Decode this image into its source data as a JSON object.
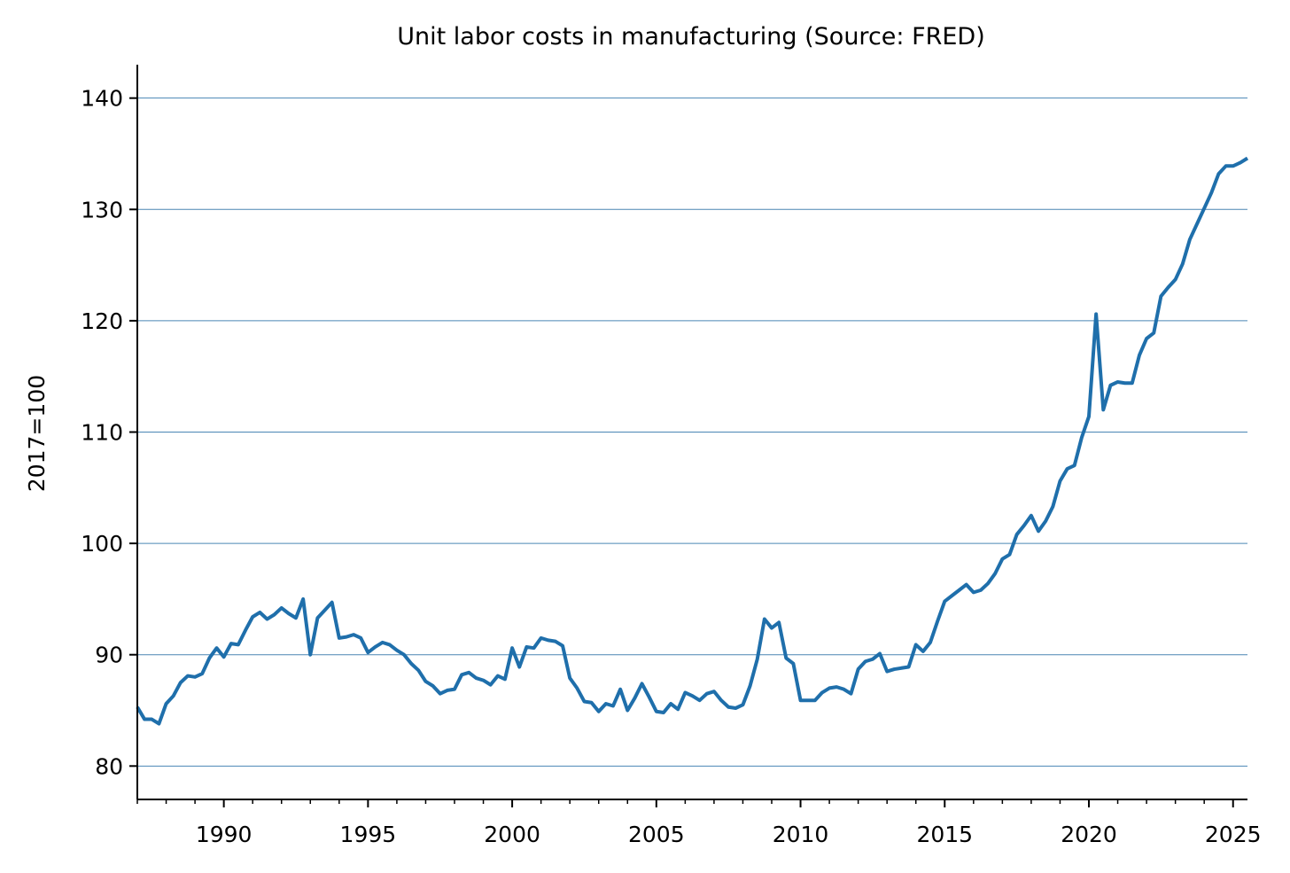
{
  "chart_data": {
    "type": "line",
    "title": "Unit labor costs in manufacturing (Source: FRED)",
    "xlabel": "",
    "ylabel": "2017=100",
    "xlim": [
      1987.0,
      2025.5
    ],
    "ylim": [
      77,
      143
    ],
    "x_ticks": [
      1990,
      1995,
      2000,
      2005,
      2010,
      2015,
      2020,
      2025
    ],
    "x_tick_labels": [
      "1990",
      "1995",
      "2000",
      "2005",
      "2010",
      "2015",
      "2020",
      "2025"
    ],
    "y_ticks": [
      80,
      90,
      100,
      110,
      120,
      130,
      140
    ],
    "y_tick_labels": [
      "80",
      "90",
      "100",
      "110",
      "120",
      "130",
      "140"
    ],
    "grid": "horizontal",
    "legend": "none",
    "colors": {
      "line": "#1f6fab",
      "grid": "#4a86b4",
      "axis": "#000000"
    },
    "series": [
      {
        "x": [
          1987.0,
          1987.25,
          1987.5,
          1987.75,
          1988.0,
          1988.25,
          1988.5,
          1988.75,
          1989.0,
          1989.25,
          1989.5,
          1989.75,
          1990.0,
          1990.25,
          1990.5,
          1990.75,
          1991.0,
          1991.25,
          1991.5,
          1991.75,
          1992.0,
          1992.25,
          1992.5,
          1992.75,
          1993.0,
          1993.25,
          1993.5,
          1993.75,
          1994.0,
          1994.25,
          1994.5,
          1994.75,
          1995.0,
          1995.25,
          1995.5,
          1995.75,
          1996.0,
          1996.25,
          1996.5,
          1996.75,
          1997.0,
          1997.25,
          1997.5,
          1997.75,
          1998.0,
          1998.25,
          1998.5,
          1998.75,
          1999.0,
          1999.25,
          1999.5,
          1999.75,
          2000.0,
          2000.25,
          2000.5,
          2000.75,
          2001.0,
          2001.25,
          2001.5,
          2001.75,
          2002.0,
          2002.25,
          2002.5,
          2002.75,
          2003.0,
          2003.25,
          2003.5,
          2003.75,
          2004.0,
          2004.25,
          2004.5,
          2004.75,
          2005.0,
          2005.25,
          2005.5,
          2005.75,
          2006.0,
          2006.25,
          2006.5,
          2006.75,
          2007.0,
          2007.25,
          2007.5,
          2007.75,
          2008.0,
          2008.25,
          2008.5,
          2008.75,
          2009.0,
          2009.25,
          2009.5,
          2009.75,
          2010.0,
          2010.25,
          2010.5,
          2010.75,
          2011.0,
          2011.25,
          2011.5,
          2011.75,
          2012.0,
          2012.25,
          2012.5,
          2012.75,
          2013.0,
          2013.25,
          2013.5,
          2013.75,
          2014.0,
          2014.25,
          2014.5,
          2014.75,
          2015.0,
          2015.25,
          2015.5,
          2015.75,
          2016.0,
          2016.25,
          2016.5,
          2016.75,
          2017.0,
          2017.25,
          2017.5,
          2017.75,
          2018.0,
          2018.25,
          2018.5,
          2018.75,
          2019.0,
          2019.25,
          2019.5,
          2019.75,
          2020.0,
          2020.25,
          2020.5,
          2020.75,
          2021.0,
          2021.25,
          2021.5,
          2021.75,
          2022.0,
          2022.25,
          2022.5,
          2022.75,
          2023.0,
          2023.25,
          2023.5,
          2023.75,
          2024.0,
          2024.25,
          2024.5,
          2024.75,
          2025.0,
          2025.25,
          2025.5
        ],
        "y": [
          85.3,
          84.2,
          84.2,
          83.8,
          85.6,
          86.3,
          87.5,
          88.1,
          88.0,
          88.3,
          89.7,
          90.6,
          89.8,
          91.0,
          90.9,
          92.2,
          93.4,
          93.8,
          93.2,
          93.6,
          94.2,
          93.7,
          93.3,
          95.0,
          90.0,
          93.3,
          94.0,
          94.7,
          91.5,
          91.6,
          91.8,
          91.5,
          90.2,
          90.7,
          91.1,
          90.9,
          90.4,
          90.0,
          89.2,
          88.6,
          87.6,
          87.2,
          86.5,
          86.8,
          86.9,
          88.2,
          88.4,
          87.9,
          87.7,
          87.3,
          88.1,
          87.8,
          90.6,
          88.9,
          90.7,
          90.6,
          91.5,
          91.3,
          91.2,
          90.8,
          87.9,
          87.0,
          85.8,
          85.7,
          84.9,
          85.6,
          85.4,
          86.9,
          85.0,
          86.1,
          87.4,
          86.2,
          84.9,
          84.8,
          85.6,
          85.1,
          86.6,
          86.3,
          85.9,
          86.5,
          86.7,
          85.9,
          85.3,
          85.2,
          85.5,
          87.2,
          89.6,
          93.2,
          92.4,
          92.9,
          89.7,
          89.2,
          85.9,
          85.9,
          85.9,
          86.6,
          87.0,
          87.1,
          86.9,
          86.5,
          88.7,
          89.4,
          89.6,
          90.1,
          88.5,
          88.7,
          88.8,
          88.9,
          90.9,
          90.3,
          91.1,
          93.0,
          94.8,
          95.3,
          95.8,
          96.3,
          95.6,
          95.8,
          96.4,
          97.3,
          98.6,
          99.0,
          100.8,
          101.6,
          102.5,
          101.1,
          102.0,
          103.3,
          105.6,
          106.7,
          107.0,
          109.5,
          111.4,
          120.6,
          112.0,
          114.2,
          114.5,
          114.4,
          114.4,
          116.9,
          118.4,
          118.9,
          122.2,
          123.0,
          123.7,
          125.1,
          127.3,
          128.7,
          130.1,
          131.5,
          133.2,
          133.9,
          133.9,
          134.2,
          134.6
        ]
      }
    ]
  }
}
